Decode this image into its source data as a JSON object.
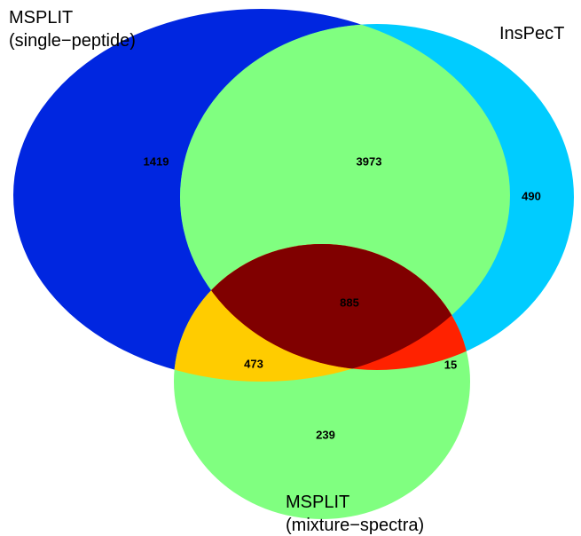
{
  "sets": [
    {
      "label": [
        "MSPLIT",
        "(single−peptide)"
      ]
    },
    {
      "label": [
        "InsPecT"
      ]
    },
    {
      "label": [
        "MSPLIT",
        "(mixture−spectra)"
      ]
    }
  ],
  "regions": {
    "single_only": "1419",
    "single_inspect": "3973",
    "inspect_only": "490",
    "all_three": "885",
    "single_mixture": "473",
    "inspect_mixture": "15",
    "mixture_only": "239"
  }
}
